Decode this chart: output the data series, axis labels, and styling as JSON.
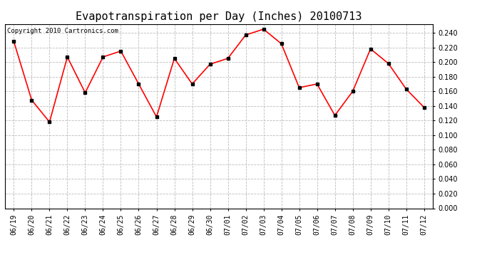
{
  "title": "Evapotranspiration per Day (Inches) 20100713",
  "copyright_text": "Copyright 2010 Cartronics.com",
  "dates": [
    "06/19",
    "06/20",
    "06/21",
    "06/22",
    "06/23",
    "06/24",
    "06/25",
    "06/26",
    "06/27",
    "06/28",
    "06/29",
    "06/30",
    "07/01",
    "07/02",
    "07/03",
    "07/04",
    "07/05",
    "07/06",
    "07/07",
    "07/08",
    "07/09",
    "07/10",
    "07/11",
    "07/12"
  ],
  "values": [
    0.228,
    0.148,
    0.118,
    0.207,
    0.158,
    0.207,
    0.215,
    0.17,
    0.125,
    0.205,
    0.17,
    0.197,
    0.205,
    0.237,
    0.245,
    0.225,
    0.165,
    0.17,
    0.127,
    0.16,
    0.218,
    0.198,
    0.163,
    0.138
  ],
  "ylim": [
    0.0,
    0.252
  ],
  "yticks": [
    0.0,
    0.02,
    0.04,
    0.06,
    0.08,
    0.1,
    0.12,
    0.14,
    0.16,
    0.18,
    0.2,
    0.22,
    0.24
  ],
  "line_color": "red",
  "marker": "s",
  "marker_color": "black",
  "marker_size": 3,
  "grid_color": "#bbbbbb",
  "bg_color": "white",
  "title_fontsize": 11,
  "tick_fontsize": 7,
  "copyright_fontsize": 6.5
}
